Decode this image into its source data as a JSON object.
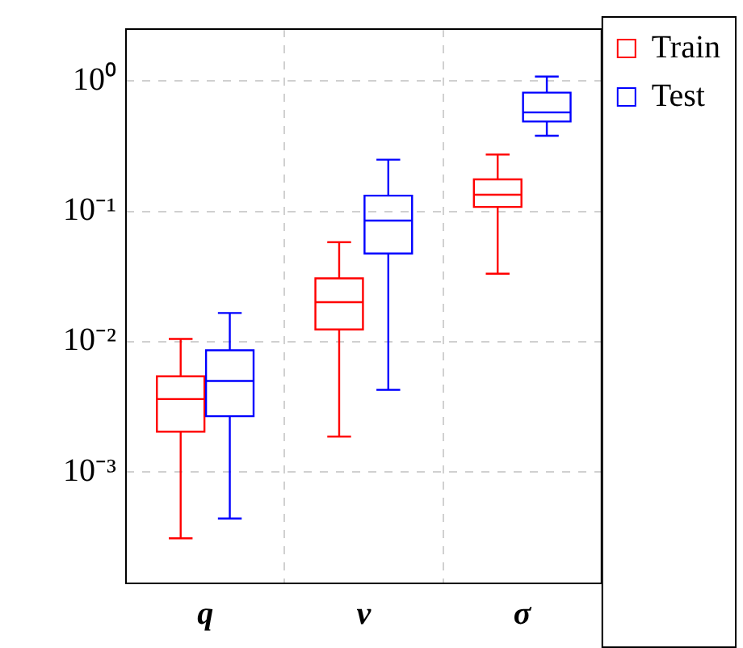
{
  "chart_data": {
    "type": "box",
    "categories": [
      "q",
      "v",
      "σ"
    ],
    "log": "y",
    "ylim": [
      0.00014,
      2.5
    ],
    "yticks": [
      {
        "value": 0.001,
        "label": "10⁻³"
      },
      {
        "value": 0.01,
        "label": "10⁻²"
      },
      {
        "value": 0.1,
        "label": "10⁻¹"
      },
      {
        "value": 1,
        "label": "10⁰"
      }
    ],
    "grid": true,
    "legend": "top right",
    "series": [
      {
        "name": "Train",
        "color": "#ff0000",
        "boxes": [
          {
            "low": 0.00031,
            "q1": 0.00204,
            "median": 0.00363,
            "q3": 0.00543,
            "high": 0.0105
          },
          {
            "low": 0.00187,
            "q1": 0.0124,
            "median": 0.0201,
            "q3": 0.0306,
            "high": 0.058
          },
          {
            "low": 0.0332,
            "q1": 0.108,
            "median": 0.134,
            "q3": 0.176,
            "high": 0.273
          }
        ]
      },
      {
        "name": "Test",
        "color": "#0000ff",
        "boxes": [
          {
            "low": 0.00044,
            "q1": 0.00268,
            "median": 0.005,
            "q3": 0.0086,
            "high": 0.0166
          },
          {
            "low": 0.00427,
            "q1": 0.0475,
            "median": 0.085,
            "q3": 0.132,
            "high": 0.249
          },
          {
            "low": 0.38,
            "q1": 0.489,
            "median": 0.574,
            "q3": 0.814,
            "high": 1.08
          }
        ]
      }
    ]
  }
}
